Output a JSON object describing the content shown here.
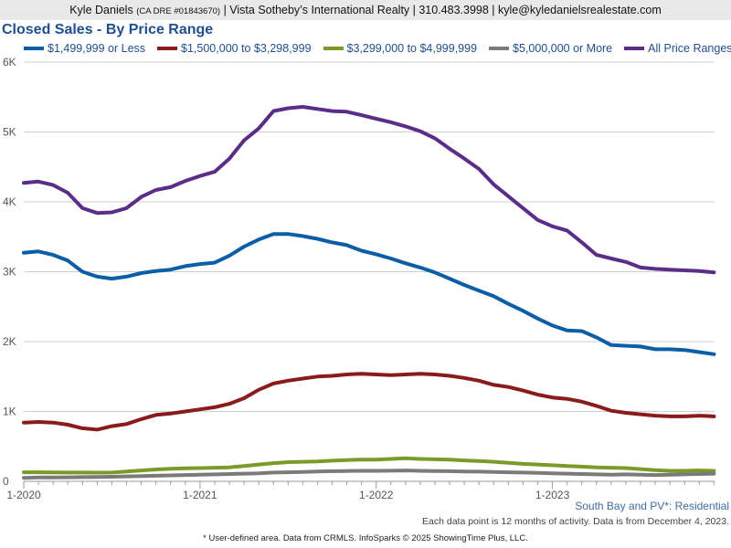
{
  "header": {
    "agent": "Kyle Daniels",
    "license": "(CA DRE #01843670)",
    "brokerage": "| Vista Sotheby’s International Realty | 310.483.3998 | kyle@kyledanielsrealestate.com"
  },
  "area_label": "South Bay and PV*: Residential",
  "note": "Each data point is 12 months of activity. Data is from December 4, 2023.",
  "footer": "* User-defined area. Data from CRMLS. InfoSparks © 2025 ShowingTime Plus, LLC.",
  "chart_data": {
    "type": "line",
    "title": "Closed Sales - By Price Range",
    "xlabel": "",
    "ylabel": "",
    "ylim": [
      0,
      6000
    ],
    "xlim": [
      2020.0,
      2023.92
    ],
    "yticks": [
      0,
      1000,
      2000,
      3000,
      4000,
      5000,
      6000
    ],
    "ytick_labels": [
      "0",
      "1K",
      "2K",
      "3K",
      "4K",
      "5K",
      "6K"
    ],
    "xticks": [
      2020.0,
      2021.0,
      2022.0,
      2023.0
    ],
    "xtick_labels": [
      "1-2020",
      "1-2021",
      "1-2022",
      "1-2023"
    ],
    "grid": true,
    "legend_position": "top",
    "x": [
      2020.0,
      2020.083,
      2020.167,
      2020.25,
      2020.333,
      2020.417,
      2020.5,
      2020.583,
      2020.667,
      2020.75,
      2020.833,
      2020.917,
      2021.0,
      2021.083,
      2021.167,
      2021.25,
      2021.333,
      2021.417,
      2021.5,
      2021.583,
      2021.667,
      2021.75,
      2021.833,
      2021.917,
      2022.0,
      2022.083,
      2022.167,
      2022.25,
      2022.333,
      2022.417,
      2022.5,
      2022.583,
      2022.667,
      2022.75,
      2022.833,
      2022.917,
      2023.0,
      2023.083,
      2023.167,
      2023.25,
      2023.333,
      2023.417,
      2023.5,
      2023.583,
      2023.667,
      2023.75,
      2023.833,
      2023.917
    ],
    "series": [
      {
        "name": "$1,499,999 or Less",
        "color": "#0a5ea8",
        "values": [
          3270,
          3290,
          3240,
          3160,
          3000,
          2930,
          2900,
          2930,
          2980,
          3010,
          3030,
          3080,
          3110,
          3130,
          3230,
          3360,
          3460,
          3540,
          3540,
          3510,
          3470,
          3420,
          3380,
          3300,
          3250,
          3190,
          3120,
          3060,
          2990,
          2900,
          2810,
          2730,
          2650,
          2540,
          2440,
          2330,
          2230,
          2160,
          2150,
          2060,
          1950,
          1940,
          1930,
          1890,
          1890,
          1880,
          1850,
          1820
        ]
      },
      {
        "name": "$1,500,000 to $3,298,999",
        "color": "#8b1a1a",
        "values": [
          840,
          850,
          840,
          810,
          760,
          740,
          790,
          820,
          890,
          950,
          970,
          1000,
          1030,
          1060,
          1110,
          1190,
          1310,
          1400,
          1440,
          1470,
          1500,
          1510,
          1530,
          1540,
          1530,
          1520,
          1530,
          1540,
          1530,
          1510,
          1480,
          1440,
          1380,
          1350,
          1300,
          1240,
          1200,
          1180,
          1140,
          1080,
          1010,
          980,
          960,
          940,
          930,
          930,
          940,
          930
        ]
      },
      {
        "name": "$3,299,000 to $4,999,999",
        "color": "#7a9a2a",
        "values": [
          130,
          130,
          128,
          126,
          125,
          124,
          126,
          140,
          155,
          170,
          180,
          185,
          190,
          195,
          200,
          220,
          240,
          260,
          275,
          280,
          285,
          295,
          305,
          310,
          310,
          320,
          330,
          320,
          315,
          310,
          300,
          290,
          280,
          265,
          250,
          240,
          230,
          220,
          210,
          200,
          195,
          190,
          175,
          160,
          150,
          150,
          155,
          150
        ]
      },
      {
        "name": "$5,000,000 or More",
        "color": "#7a7a7a",
        "values": [
          50,
          55,
          55,
          58,
          60,
          62,
          65,
          70,
          75,
          80,
          85,
          90,
          95,
          100,
          105,
          110,
          115,
          125,
          130,
          135,
          140,
          145,
          148,
          150,
          150,
          152,
          155,
          150,
          148,
          145,
          140,
          138,
          135,
          130,
          125,
          120,
          115,
          110,
          105,
          100,
          95,
          100,
          95,
          90,
          95,
          100,
          105,
          110
        ]
      },
      {
        "name": "All Price Ranges",
        "color": "#5a2d8a",
        "values": [
          4270,
          4290,
          4240,
          4130,
          3910,
          3840,
          3850,
          3910,
          4070,
          4170,
          4210,
          4300,
          4370,
          4430,
          4620,
          4880,
          5050,
          5300,
          5340,
          5360,
          5330,
          5300,
          5290,
          5240,
          5190,
          5140,
          5080,
          5010,
          4910,
          4760,
          4620,
          4470,
          4250,
          4080,
          3910,
          3740,
          3650,
          3590,
          3420,
          3240,
          3190,
          3140,
          3060,
          3040,
          3030,
          3020,
          3010,
          2990
        ]
      }
    ]
  }
}
